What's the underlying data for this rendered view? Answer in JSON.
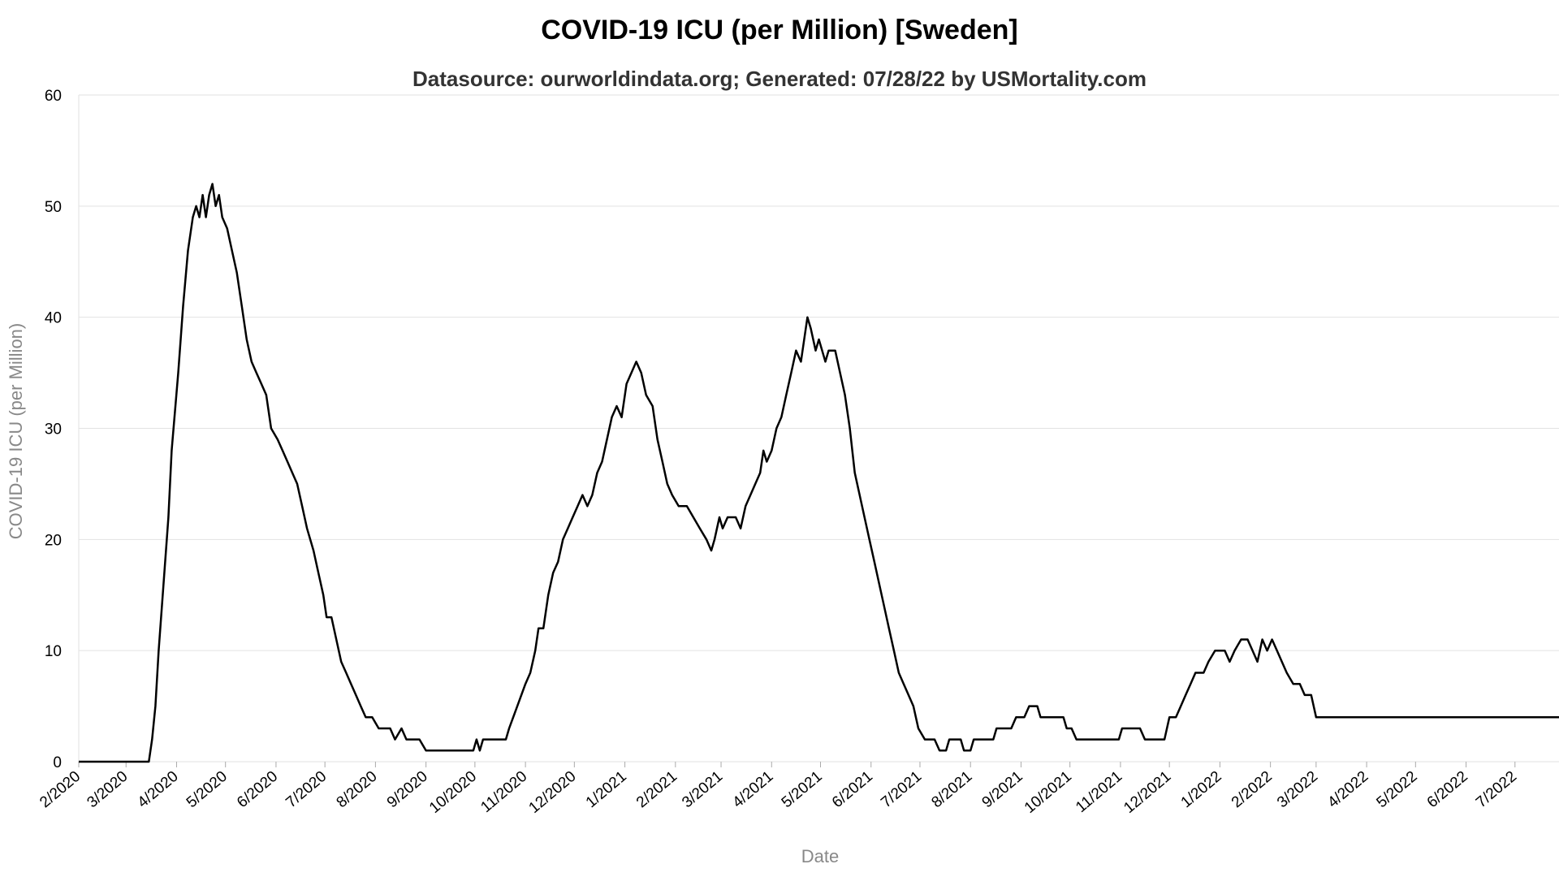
{
  "chart_data": {
    "type": "line",
    "title": "COVID-19 ICU (per Million) [Sweden]",
    "subtitle": "Datasource: ourworldindata.org; Generated: 07/28/22 by USMortality.com",
    "xlabel": "Date",
    "ylabel": "COVID-19 ICU (per Million)",
    "ylim": [
      0,
      60
    ],
    "y_ticks": [
      0,
      10,
      20,
      30,
      40,
      50,
      60
    ],
    "grid": true,
    "x_tick_labels": [
      "2/2020",
      "3/2020",
      "4/2020",
      "5/2020",
      "6/2020",
      "7/2020",
      "8/2020",
      "9/2020",
      "10/2020",
      "11/2020",
      "12/2020",
      "1/2021",
      "2/2021",
      "3/2021",
      "4/2021",
      "5/2021",
      "6/2021",
      "7/2021",
      "8/2021",
      "9/2021",
      "10/2021",
      "11/2021",
      "12/2021",
      "1/2022",
      "2/2022",
      "3/2022",
      "4/2022",
      "5/2022",
      "6/2022",
      "7/2022"
    ],
    "series": [
      {
        "color": "#000000",
        "points": [
          [
            "2020-02-01",
            0
          ],
          [
            "2020-03-15",
            0
          ],
          [
            "2020-03-17",
            2
          ],
          [
            "2020-03-19",
            5
          ],
          [
            "2020-03-21",
            10
          ],
          [
            "2020-03-24",
            16
          ],
          [
            "2020-03-27",
            22
          ],
          [
            "2020-03-29",
            28
          ],
          [
            "2020-04-02",
            35
          ],
          [
            "2020-04-05",
            41
          ],
          [
            "2020-04-08",
            46
          ],
          [
            "2020-04-11",
            49
          ],
          [
            "2020-04-13",
            50
          ],
          [
            "2020-04-15",
            49
          ],
          [
            "2020-04-17",
            51
          ],
          [
            "2020-04-19",
            49
          ],
          [
            "2020-04-21",
            51
          ],
          [
            "2020-04-23",
            52
          ],
          [
            "2020-04-25",
            50
          ],
          [
            "2020-04-27",
            51
          ],
          [
            "2020-04-29",
            49
          ],
          [
            "2020-05-02",
            48
          ],
          [
            "2020-05-05",
            46
          ],
          [
            "2020-05-08",
            44
          ],
          [
            "2020-05-11",
            41
          ],
          [
            "2020-05-14",
            38
          ],
          [
            "2020-05-17",
            36
          ],
          [
            "2020-05-20",
            35
          ],
          [
            "2020-05-23",
            34
          ],
          [
            "2020-05-26",
            33
          ],
          [
            "2020-05-29",
            30
          ],
          [
            "2020-06-02",
            29
          ],
          [
            "2020-06-05",
            28
          ],
          [
            "2020-06-08",
            27
          ],
          [
            "2020-06-11",
            26
          ],
          [
            "2020-06-14",
            25
          ],
          [
            "2020-06-17",
            23
          ],
          [
            "2020-06-20",
            21
          ],
          [
            "2020-06-24",
            19
          ],
          [
            "2020-06-27",
            17
          ],
          [
            "2020-06-30",
            15
          ],
          [
            "2020-07-02",
            13
          ],
          [
            "2020-07-05",
            13
          ],
          [
            "2020-07-08",
            11
          ],
          [
            "2020-07-11",
            9
          ],
          [
            "2020-07-14",
            8
          ],
          [
            "2020-07-17",
            7
          ],
          [
            "2020-07-20",
            6
          ],
          [
            "2020-07-23",
            5
          ],
          [
            "2020-07-26",
            4
          ],
          [
            "2020-07-30",
            4
          ],
          [
            "2020-08-03",
            3
          ],
          [
            "2020-08-10",
            3
          ],
          [
            "2020-08-13",
            2
          ],
          [
            "2020-08-17",
            3
          ],
          [
            "2020-08-20",
            2
          ],
          [
            "2020-08-24",
            2
          ],
          [
            "2020-08-28",
            2
          ],
          [
            "2020-09-01",
            1
          ],
          [
            "2020-09-30",
            1
          ],
          [
            "2020-10-02",
            2
          ],
          [
            "2020-10-04",
            1
          ],
          [
            "2020-10-06",
            2
          ],
          [
            "2020-10-20",
            2
          ],
          [
            "2020-10-22",
            3
          ],
          [
            "2020-10-27",
            5
          ],
          [
            "2020-11-01",
            7
          ],
          [
            "2020-11-04",
            8
          ],
          [
            "2020-11-07",
            10
          ],
          [
            "2020-11-09",
            12
          ],
          [
            "2020-11-12",
            12
          ],
          [
            "2020-11-15",
            15
          ],
          [
            "2020-11-18",
            17
          ],
          [
            "2020-11-21",
            18
          ],
          [
            "2020-11-24",
            20
          ],
          [
            "2020-11-27",
            21
          ],
          [
            "2020-11-30",
            22
          ],
          [
            "2020-12-03",
            23
          ],
          [
            "2020-12-06",
            24
          ],
          [
            "2020-12-09",
            23
          ],
          [
            "2020-12-12",
            24
          ],
          [
            "2020-12-15",
            26
          ],
          [
            "2020-12-18",
            27
          ],
          [
            "2020-12-21",
            29
          ],
          [
            "2020-12-24",
            31
          ],
          [
            "2020-12-27",
            32
          ],
          [
            "2020-12-30",
            31
          ],
          [
            "2021-01-02",
            34
          ],
          [
            "2021-01-05",
            35
          ],
          [
            "2021-01-08",
            36
          ],
          [
            "2021-01-11",
            35
          ],
          [
            "2021-01-14",
            33
          ],
          [
            "2021-01-18",
            32
          ],
          [
            "2021-01-21",
            29
          ],
          [
            "2021-01-24",
            27
          ],
          [
            "2021-01-27",
            25
          ],
          [
            "2021-01-30",
            24
          ],
          [
            "2021-02-03",
            23
          ],
          [
            "2021-02-08",
            23
          ],
          [
            "2021-02-12",
            22
          ],
          [
            "2021-02-16",
            21
          ],
          [
            "2021-02-20",
            20
          ],
          [
            "2021-02-23",
            19
          ],
          [
            "2021-02-25",
            20
          ],
          [
            "2021-02-28",
            22
          ],
          [
            "2021-03-02",
            21
          ],
          [
            "2021-03-05",
            22
          ],
          [
            "2021-03-10",
            22
          ],
          [
            "2021-03-13",
            21
          ],
          [
            "2021-03-16",
            23
          ],
          [
            "2021-03-19",
            24
          ],
          [
            "2021-03-22",
            25
          ],
          [
            "2021-03-25",
            26
          ],
          [
            "2021-03-27",
            28
          ],
          [
            "2021-03-29",
            27
          ],
          [
            "2021-04-01",
            28
          ],
          [
            "2021-04-04",
            30
          ],
          [
            "2021-04-07",
            31
          ],
          [
            "2021-04-10",
            33
          ],
          [
            "2021-04-13",
            35
          ],
          [
            "2021-04-16",
            37
          ],
          [
            "2021-04-19",
            36
          ],
          [
            "2021-04-21",
            38
          ],
          [
            "2021-04-23",
            40
          ],
          [
            "2021-04-25",
            39
          ],
          [
            "2021-04-28",
            37
          ],
          [
            "2021-04-30",
            38
          ],
          [
            "2021-05-02",
            37
          ],
          [
            "2021-05-04",
            36
          ],
          [
            "2021-05-06",
            37
          ],
          [
            "2021-05-10",
            37
          ],
          [
            "2021-05-13",
            35
          ],
          [
            "2021-05-16",
            33
          ],
          [
            "2021-05-19",
            30
          ],
          [
            "2021-05-22",
            26
          ],
          [
            "2021-05-25",
            24
          ],
          [
            "2021-05-28",
            22
          ],
          [
            "2021-05-31",
            20
          ],
          [
            "2021-06-03",
            18
          ],
          [
            "2021-06-06",
            16
          ],
          [
            "2021-06-09",
            14
          ],
          [
            "2021-06-12",
            12
          ],
          [
            "2021-06-15",
            10
          ],
          [
            "2021-06-18",
            8
          ],
          [
            "2021-06-21",
            7
          ],
          [
            "2021-06-24",
            6
          ],
          [
            "2021-06-27",
            5
          ],
          [
            "2021-06-30",
            3
          ],
          [
            "2021-07-04",
            2
          ],
          [
            "2021-07-10",
            2
          ],
          [
            "2021-07-13",
            1
          ],
          [
            "2021-07-17",
            1
          ],
          [
            "2021-07-19",
            2
          ],
          [
            "2021-07-26",
            2
          ],
          [
            "2021-07-28",
            1
          ],
          [
            "2021-08-01",
            1
          ],
          [
            "2021-08-03",
            2
          ],
          [
            "2021-08-15",
            2
          ],
          [
            "2021-08-17",
            3
          ],
          [
            "2021-08-26",
            3
          ],
          [
            "2021-08-29",
            4
          ],
          [
            "2021-09-03",
            4
          ],
          [
            "2021-09-06",
            5
          ],
          [
            "2021-09-11",
            5
          ],
          [
            "2021-09-13",
            4
          ],
          [
            "2021-09-27",
            4
          ],
          [
            "2021-09-29",
            3
          ],
          [
            "2021-10-02",
            3
          ],
          [
            "2021-10-05",
            2
          ],
          [
            "2021-10-31",
            2
          ],
          [
            "2021-11-02",
            3
          ],
          [
            "2021-11-13",
            3
          ],
          [
            "2021-11-16",
            2
          ],
          [
            "2021-11-28",
            2
          ],
          [
            "2021-12-01",
            4
          ],
          [
            "2021-12-05",
            4
          ],
          [
            "2021-12-08",
            5
          ],
          [
            "2021-12-11",
            6
          ],
          [
            "2021-12-14",
            7
          ],
          [
            "2021-12-17",
            8
          ],
          [
            "2021-12-22",
            8
          ],
          [
            "2021-12-25",
            9
          ],
          [
            "2021-12-29",
            10
          ],
          [
            "2022-01-04",
            10
          ],
          [
            "2022-01-07",
            9
          ],
          [
            "2022-01-10",
            10
          ],
          [
            "2022-01-14",
            11
          ],
          [
            "2022-01-18",
            11
          ],
          [
            "2022-01-21",
            10
          ],
          [
            "2022-01-24",
            9
          ],
          [
            "2022-01-27",
            11
          ],
          [
            "2022-01-30",
            10
          ],
          [
            "2022-02-02",
            11
          ],
          [
            "2022-02-05",
            10
          ],
          [
            "2022-02-08",
            9
          ],
          [
            "2022-02-11",
            8
          ],
          [
            "2022-02-15",
            7
          ],
          [
            "2022-02-19",
            7
          ],
          [
            "2022-02-22",
            6
          ],
          [
            "2022-02-26",
            6
          ],
          [
            "2022-03-01",
            4
          ],
          [
            "2022-07-28",
            4
          ]
        ]
      }
    ]
  }
}
